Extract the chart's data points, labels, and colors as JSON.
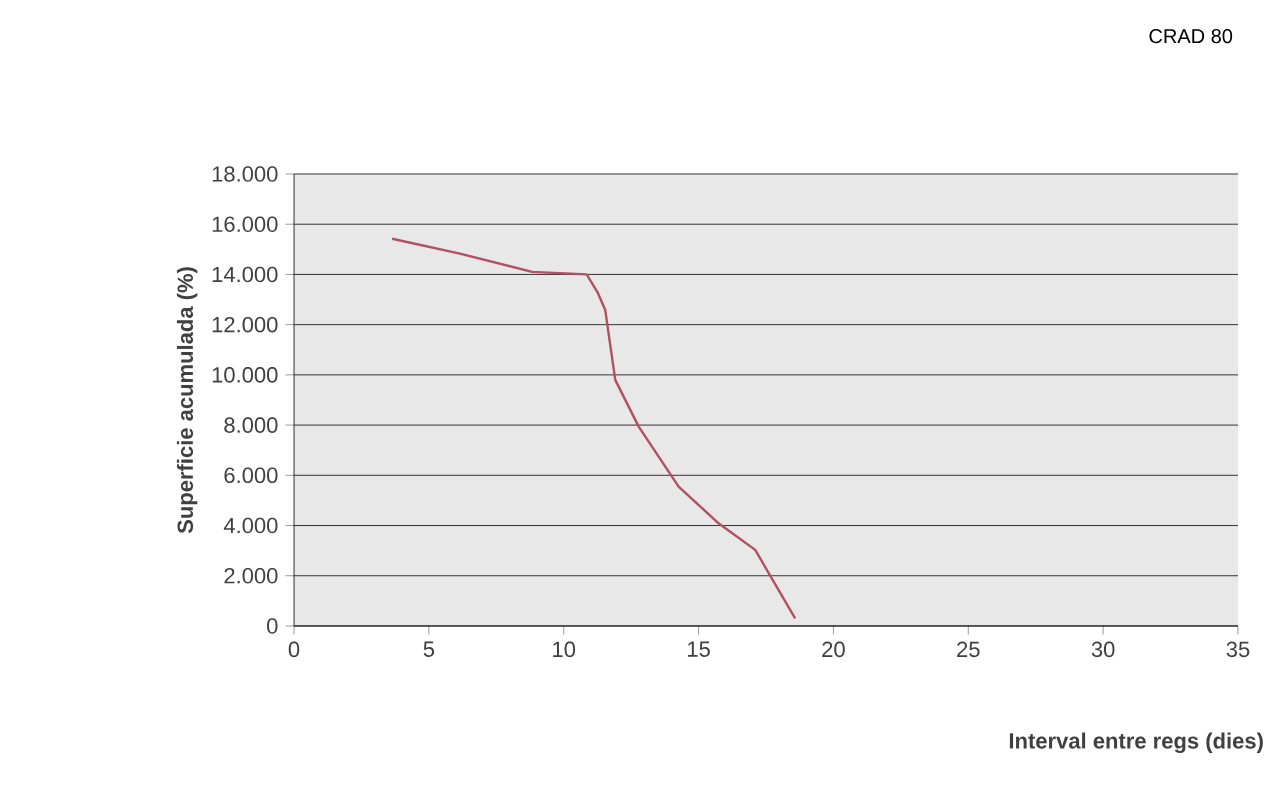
{
  "chart_data": {
    "type": "line",
    "title": "CRAD 80",
    "xlabel": "Interval entre regs (dies)",
    "ylabel": "Superficie acumulada (%)",
    "x": [
      3.64,
      6.11,
      8.83,
      10.85,
      11.25,
      11.54,
      11.91,
      12.78,
      14.26,
      15.74,
      17.1,
      18.58
    ],
    "series": [
      {
        "color": "#b05060",
        "values": [
          15420,
          14840,
          14100,
          14000,
          13300,
          12580,
          9800,
          7940,
          5550,
          4090,
          3030,
          300
        ]
      }
    ],
    "xlim": [
      0,
      35
    ],
    "xticks": [
      0,
      5,
      10,
      15,
      20,
      25,
      30,
      35
    ],
    "ylim": [
      0,
      18000
    ],
    "yticks": [
      0,
      {
        "value": 2000,
        "label": "2.000"
      },
      {
        "value": 4000,
        "label": "4.000"
      },
      {
        "value": 6000,
        "label": "6.000"
      },
      {
        "value": 8000,
        "label": "8.000"
      },
      {
        "value": 10000,
        "label": "10.000"
      },
      {
        "value": 12000,
        "label": "12.000"
      },
      {
        "value": 14000,
        "label": "14.000"
      },
      {
        "value": 16000,
        "label": "16.000"
      },
      {
        "value": 18000,
        "label": "18.000"
      }
    ],
    "grid": "y",
    "marker": "none",
    "line_style": "solid"
  }
}
